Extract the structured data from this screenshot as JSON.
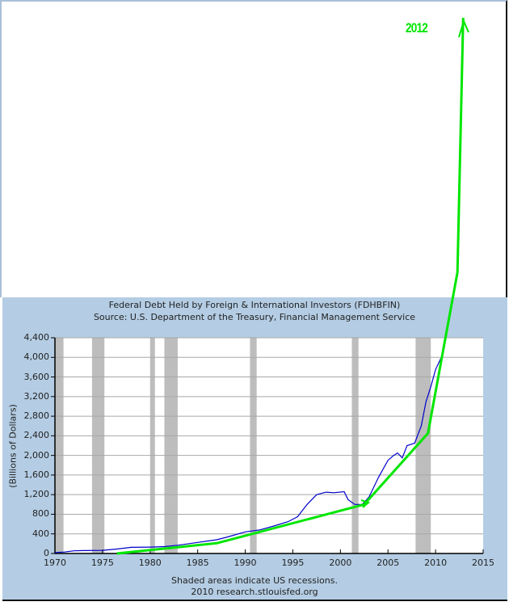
{
  "chart_data": {
    "type": "line",
    "title": "Federal Debt Held by Foreign & International Investors (FDHBFIN)",
    "subtitle": "Source: U.S. Department of the Treasury, Financial Management Service",
    "xlabel": "",
    "ylabel": "(Billions of Dollars)",
    "xlim": [
      1970,
      2015
    ],
    "ylim": [
      0,
      4400
    ],
    "x_ticks": [
      "1970",
      "1975",
      "1980",
      "1985",
      "1990",
      "1995",
      "2000",
      "2005",
      "2010",
      "2015"
    ],
    "y_ticks": [
      "0",
      "400",
      "800",
      "1,200",
      "1,600",
      "2,000",
      "2,400",
      "2,800",
      "3,200",
      "3,600",
      "4,000",
      "4,400"
    ],
    "grid": true,
    "recessions": [
      [
        1970.0,
        1970.9
      ],
      [
        1973.9,
        1975.2
      ],
      [
        1980.0,
        1980.5
      ],
      [
        1981.5,
        1982.9
      ],
      [
        1990.5,
        1991.2
      ],
      [
        2001.2,
        2001.9
      ],
      [
        2007.9,
        2009.5
      ]
    ],
    "series": [
      {
        "name": "FDHBFIN",
        "color": "#0000cc",
        "x": [
          1970,
          1971,
          1972,
          1973,
          1975,
          1976.5,
          1978,
          1980,
          1981.5,
          1983,
          1985,
          1987,
          1988,
          1990,
          1991.5,
          1993,
          1994.5,
          1995.5,
          1996.5,
          1997.5,
          1998.5,
          1999.3,
          2000.4,
          2000.8,
          2001.5,
          2002.3,
          2003,
          2004,
          2005,
          2005.6,
          2006,
          2006.5,
          2007,
          2007.8,
          2008.5,
          2009,
          2009.5,
          2010,
          2010.6
        ],
        "values": [
          20,
          30,
          55,
          60,
          65,
          90,
          125,
          130,
          140,
          170,
          225,
          280,
          330,
          440,
          480,
          560,
          650,
          750,
          1000,
          1200,
          1250,
          1240,
          1260,
          1100,
          1000,
          1000,
          1150,
          1550,
          1900,
          2000,
          2050,
          1950,
          2200,
          2250,
          2600,
          3100,
          3400,
          3750,
          4000
        ]
      },
      {
        "name": "hand-drawn trend annotation",
        "color": "#00e600",
        "x": [
          1976.5,
          1987,
          2002.5,
          2009.2,
          2012.3,
          2012.9
        ],
        "values": [
          0,
          210,
          1000,
          2450,
          5800,
          11000
        ]
      }
    ],
    "annotations": [
      {
        "text": "2012",
        "color": "#00e600",
        "position": "top-right, arrow pointing up"
      }
    ],
    "footer": [
      "Shaded areas indicate US recessions.",
      "2010 research.stlouisfed.org"
    ],
    "legend": "none"
  },
  "header": {
    "title": "Federal Debt Held by Foreign & International Investors (FDHBFIN)",
    "source": "Source: U.S. Department of the Treasury, Financial Management Service"
  },
  "axes": {
    "ylabel": "(Billions of Dollars)",
    "y_ticks": [
      "4,400",
      "4,000",
      "3,600",
      "3,200",
      "2,800",
      "2,400",
      "2,000",
      "1,600",
      "1,200",
      "800",
      "400",
      "0"
    ],
    "x_ticks": [
      "1970",
      "1975",
      "1980",
      "1985",
      "1990",
      "1995",
      "2000",
      "2005",
      "2010",
      "2015"
    ]
  },
  "footer": {
    "line1": "Shaded areas indicate US recessions.",
    "line2": "2010 research.stlouisfed.org"
  },
  "annotation": {
    "label": "2012",
    "color": "#00e600"
  },
  "colors": {
    "panel": "#b4cde4",
    "recession": "#bdbdbd",
    "grid": "#a8a8a8",
    "series": "#0000cc",
    "annotation": "#00e600"
  }
}
